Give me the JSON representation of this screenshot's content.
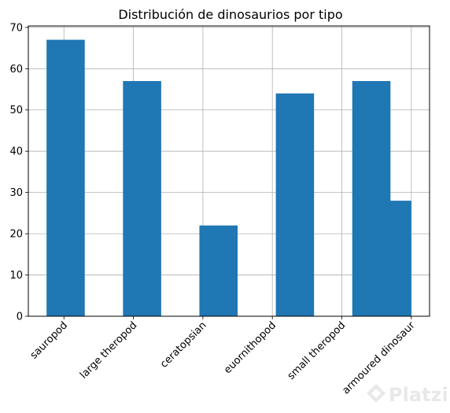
{
  "chart_data": {
    "type": "bar",
    "title": "Distribución de dinosaurios por tipo",
    "xlabel": "",
    "ylabel": "",
    "categories": [
      "sauropod",
      "large theropod",
      "ceratopsian",
      "euornithopod",
      "small theropod",
      "armoured dinosaur"
    ],
    "values": [
      67,
      57,
      22,
      54,
      57,
      28
    ],
    "yticks": [
      0,
      10,
      20,
      30,
      40,
      50,
      60,
      70
    ],
    "ylim": [
      0,
      70.35
    ],
    "grid": true,
    "legend": "none",
    "bar_color": "#1f77b4"
  },
  "watermark": {
    "text": "Platzi",
    "color": "#e6e6e6"
  }
}
